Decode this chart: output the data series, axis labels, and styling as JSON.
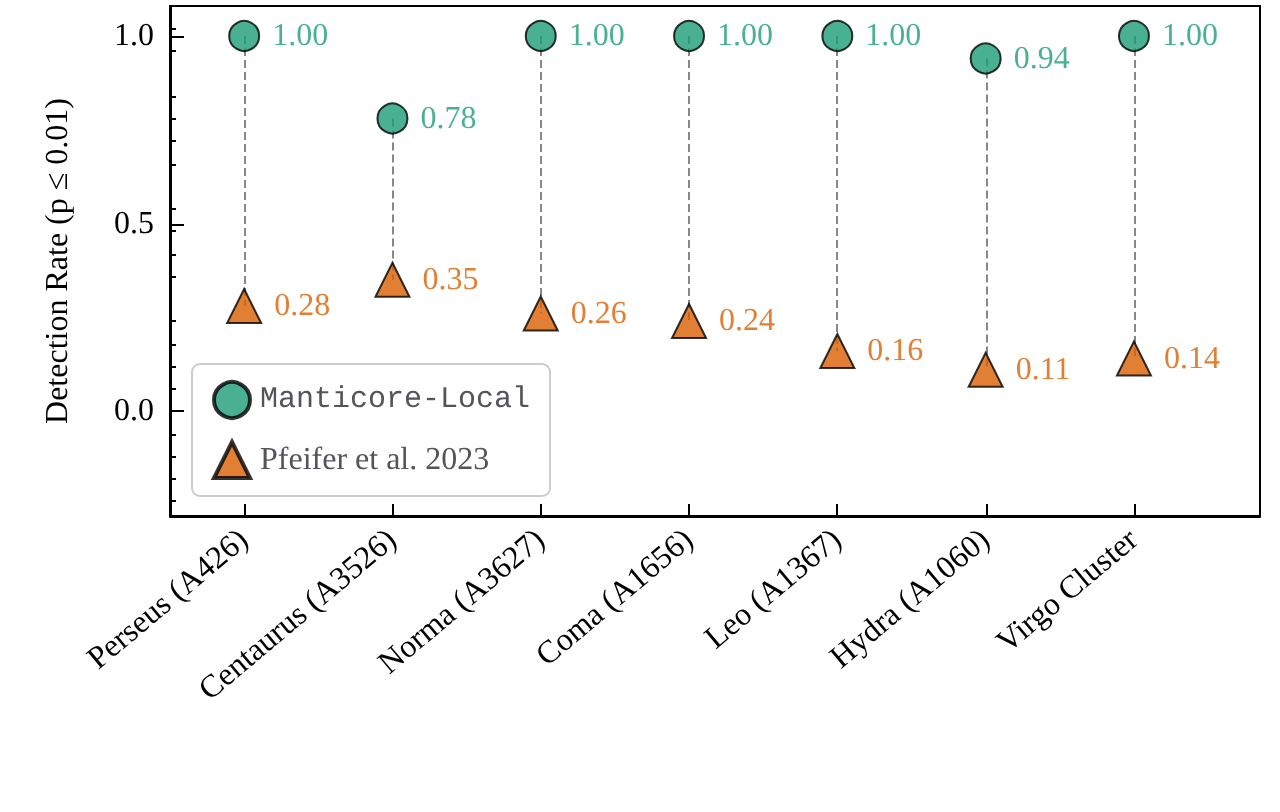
{
  "chart_data": {
    "type": "scatter",
    "ylabel": "Detection Rate (p ≤ 0.01)",
    "categories": [
      "Perseus (A426)",
      "Centaurus (A3526)",
      "Norma (A3627)",
      "Coma (A1656)",
      "Leo (A1367)",
      "Hydra (A1060)",
      "Virgo Cluster"
    ],
    "ylim": [
      -0.28,
      1.08
    ],
    "yticks": [
      {
        "value": 0,
        "label": "0.0"
      },
      {
        "value": 0.5,
        "label": "0.5"
      },
      {
        "value": 1,
        "label": "1.0"
      }
    ],
    "grid": false,
    "legend": "bottom left",
    "series": [
      {
        "name": "Manticore-Local",
        "color": "#1b9e77",
        "marker": "circle",
        "values": [
          1.0,
          0.78,
          1.0,
          1.0,
          1.0,
          0.94,
          1.0
        ],
        "value_labels": [
          "1.00",
          "0.78",
          "1.00",
          "1.00",
          "1.00",
          "0.94",
          "1.00"
        ]
      },
      {
        "name": "Pfeifer et al. 2023",
        "color": "#d95f02",
        "marker": "triangle",
        "values": [
          0.28,
          0.35,
          0.26,
          0.24,
          0.16,
          0.11,
          0.14
        ],
        "value_labels": [
          "0.28",
          "0.35",
          "0.26",
          "0.24",
          "0.16",
          "0.11",
          "0.14"
        ]
      }
    ],
    "line_style": "dashed"
  }
}
